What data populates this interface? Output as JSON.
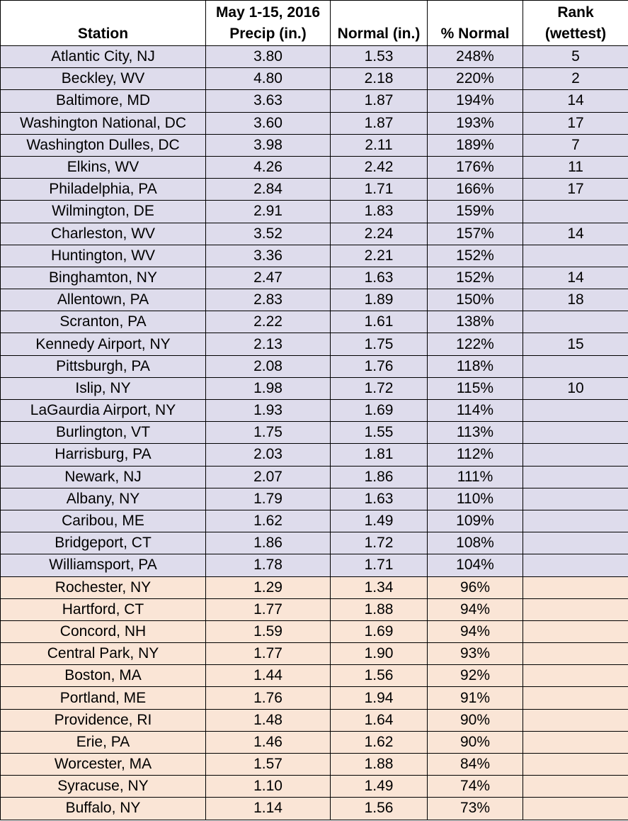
{
  "table": {
    "header": [
      [
        "Station"
      ],
      [
        "May 1-15, 2016",
        "Precip (in.)"
      ],
      [
        "Normal (in.)"
      ],
      [
        "% Normal"
      ],
      [
        "Rank",
        "(wettest)"
      ]
    ],
    "groups": [
      {
        "color": "#dedcec",
        "rows": [
          {
            "station": "Atlantic City, NJ",
            "precip": "3.80",
            "normal": "1.53",
            "pct_normal": "248%",
            "rank": "5"
          },
          {
            "station": "Beckley, WV",
            "precip": "4.80",
            "normal": "2.18",
            "pct_normal": "220%",
            "rank": "2"
          },
          {
            "station": "Baltimore, MD",
            "precip": "3.63",
            "normal": "1.87",
            "pct_normal": "194%",
            "rank": "14"
          },
          {
            "station": "Washington National, DC",
            "precip": "3.60",
            "normal": "1.87",
            "pct_normal": "193%",
            "rank": "17"
          },
          {
            "station": "Washington Dulles, DC",
            "precip": "3.98",
            "normal": "2.11",
            "pct_normal": "189%",
            "rank": "7"
          },
          {
            "station": "Elkins, WV",
            "precip": "4.26",
            "normal": "2.42",
            "pct_normal": "176%",
            "rank": "11"
          },
          {
            "station": "Philadelphia, PA",
            "precip": "2.84",
            "normal": "1.71",
            "pct_normal": "166%",
            "rank": "17"
          },
          {
            "station": "Wilmington, DE",
            "precip": "2.91",
            "normal": "1.83",
            "pct_normal": "159%"
          },
          {
            "station": "Charleston, WV",
            "precip": "3.52",
            "normal": "2.24",
            "pct_normal": "157%",
            "rank": "14"
          },
          {
            "station": "Huntington, WV",
            "precip": "3.36",
            "normal": "2.21",
            "pct_normal": "152%"
          },
          {
            "station": "Binghamton, NY",
            "precip": "2.47",
            "normal": "1.63",
            "pct_normal": "152%",
            "rank": "14"
          },
          {
            "station": "Allentown, PA",
            "precip": "2.83",
            "normal": "1.89",
            "pct_normal": "150%",
            "rank": "18"
          },
          {
            "station": "Scranton, PA",
            "precip": "2.22",
            "normal": "1.61",
            "pct_normal": "138%"
          },
          {
            "station": "Kennedy Airport, NY",
            "precip": "2.13",
            "normal": "1.75",
            "pct_normal": "122%",
            "rank": "15"
          },
          {
            "station": "Pittsburgh, PA",
            "precip": "2.08",
            "normal": "1.76",
            "pct_normal": "118%"
          },
          {
            "station": "Islip, NY",
            "precip": "1.98",
            "normal": "1.72",
            "pct_normal": "115%",
            "rank": "10"
          },
          {
            "station": "LaGaurdia Airport, NY",
            "precip": "1.93",
            "normal": "1.69",
            "pct_normal": "114%"
          },
          {
            "station": "Burlington, VT",
            "precip": "1.75",
            "normal": "1.55",
            "pct_normal": "113%"
          },
          {
            "station": "Harrisburg, PA",
            "precip": "2.03",
            "normal": "1.81",
            "pct_normal": "112%"
          },
          {
            "station": "Newark, NJ",
            "precip": "2.07",
            "normal": "1.86",
            "pct_normal": "111%"
          },
          {
            "station": "Albany, NY",
            "precip": "1.79",
            "normal": "1.63",
            "pct_normal": "110%"
          },
          {
            "station": "Caribou, ME",
            "precip": "1.62",
            "normal": "1.49",
            "pct_normal": "109%"
          },
          {
            "station": "Bridgeport, CT",
            "precip": "1.86",
            "normal": "1.72",
            "pct_normal": "108%"
          },
          {
            "station": "Williamsport, PA",
            "precip": "1.78",
            "normal": "1.71",
            "pct_normal": "104%"
          }
        ]
      },
      {
        "color": "#fae5d6",
        "rows": [
          {
            "station": "Rochester, NY",
            "precip": "1.29",
            "normal": "1.34",
            "pct_normal": "96%"
          },
          {
            "station": "Hartford, CT",
            "precip": "1.77",
            "normal": "1.88",
            "pct_normal": "94%"
          },
          {
            "station": "Concord, NH",
            "precip": "1.59",
            "normal": "1.69",
            "pct_normal": "94%"
          },
          {
            "station": "Central Park, NY",
            "precip": "1.77",
            "normal": "1.90",
            "pct_normal": "93%"
          },
          {
            "station": "Boston, MA",
            "precip": "1.44",
            "normal": "1.56",
            "pct_normal": "92%"
          },
          {
            "station": "Portland, ME",
            "precip": "1.76",
            "normal": "1.94",
            "pct_normal": "91%"
          },
          {
            "station": "Providence, RI",
            "precip": "1.48",
            "normal": "1.64",
            "pct_normal": "90%"
          },
          {
            "station": "Erie, PA",
            "precip": "1.46",
            "normal": "1.62",
            "pct_normal": "90%"
          },
          {
            "station": "Worcester, MA",
            "precip": "1.57",
            "normal": "1.88",
            "pct_normal": "84%"
          },
          {
            "station": "Syracuse, NY",
            "precip": "1.10",
            "normal": "1.49",
            "pct_normal": "74%"
          },
          {
            "station": "Buffalo, NY",
            "precip": "1.14",
            "normal": "1.56",
            "pct_normal": "73%"
          }
        ]
      }
    ]
  }
}
